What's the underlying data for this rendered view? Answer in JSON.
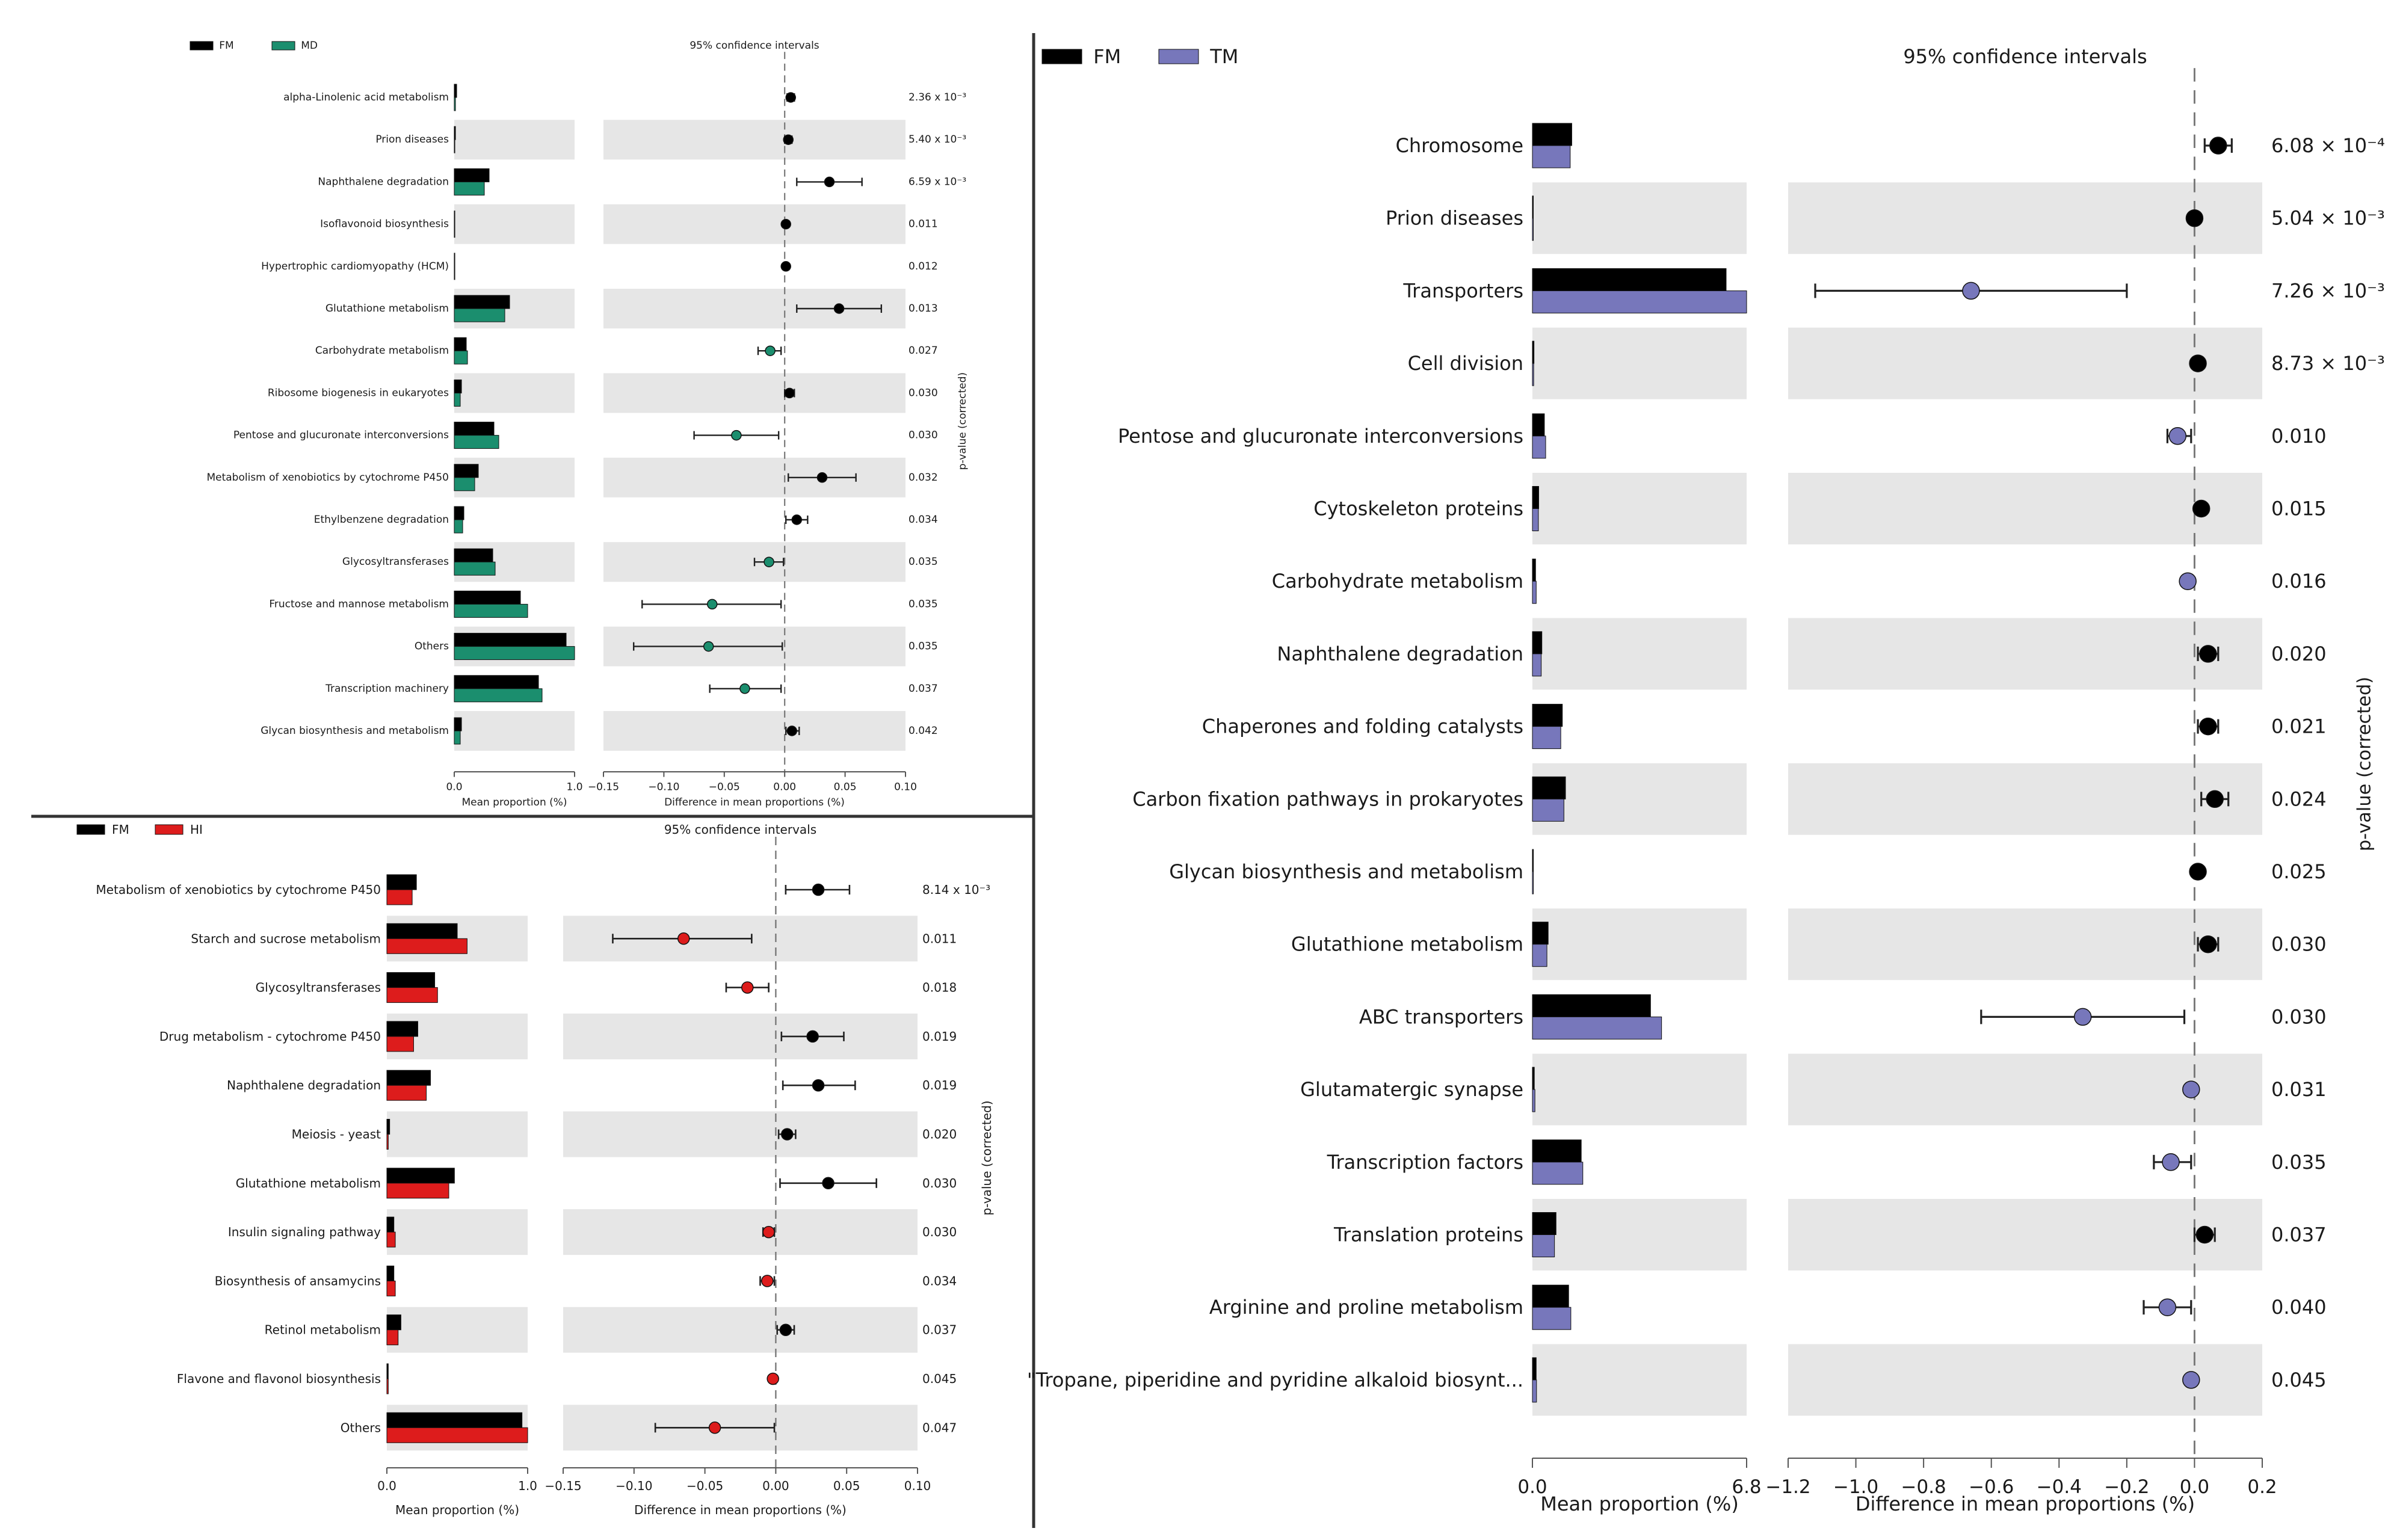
{
  "colors": {
    "FM": "#000000",
    "MD": "#1b8e6e",
    "HI": "#dd1c1c",
    "TM": "#7777bb",
    "band": "#e6e6e6",
    "axis": "#555555",
    "dashed": "#777777"
  },
  "chart_data": [
    {
      "id": "A",
      "type": "bar",
      "title": "95% confidence intervals",
      "legend": [
        {
          "name": "FM",
          "color": "#000000"
        },
        {
          "name": "MD",
          "color": "#1b8e6e"
        }
      ],
      "categories": [
        "alpha-Linolenic acid metabolism",
        "Prion diseases",
        "Naphthalene degradation",
        "Isoflavonoid biosynthesis",
        "Hypertrophic cardiomyopathy (HCM)",
        "Glutathione metabolism",
        "Carbohydrate metabolism",
        "Ribosome biogenesis in eukaryotes",
        "Pentose and glucuronate interconversions",
        "Metabolism of xenobiotics by cytochrome P450",
        "Ethylbenzene degradation",
        "Glycosyltransferases",
        "Fructose and mannose metabolism",
        "Others",
        "Transcription machinery",
        "Glycan biosynthesis and metabolism"
      ],
      "series": [
        {
          "name": "FM",
          "values": [
            0.02,
            0.01,
            0.29,
            0.0,
            0.0,
            0.46,
            0.1,
            0.06,
            0.33,
            0.2,
            0.08,
            0.32,
            0.55,
            0.93,
            0.7,
            0.06
          ]
        },
        {
          "name": "MD",
          "values": [
            0.01,
            0.0,
            0.25,
            0.0,
            0.0,
            0.42,
            0.11,
            0.05,
            0.37,
            0.17,
            0.07,
            0.34,
            0.61,
            1.0,
            0.73,
            0.05
          ]
        }
      ],
      "differences": [
        0.005,
        0.003,
        0.037,
        0.001,
        0.001,
        0.045,
        -0.012,
        0.004,
        -0.04,
        0.031,
        0.01,
        -0.013,
        -0.06,
        -0.063,
        -0.033,
        0.006
      ],
      "ci_low": [
        0.002,
        0.0,
        0.01,
        0.0,
        0.0,
        0.01,
        -0.022,
        0.0,
        -0.075,
        0.003,
        0.001,
        -0.025,
        -0.118,
        -0.125,
        -0.062,
        0.001
      ],
      "ci_high": [
        0.008,
        0.006,
        0.064,
        0.002,
        0.002,
        0.08,
        -0.003,
        0.008,
        -0.005,
        0.059,
        0.019,
        -0.001,
        -0.003,
        -0.002,
        -0.003,
        0.012
      ],
      "diff_colors": [
        "FM",
        "FM",
        "FM",
        "FM",
        "FM",
        "FM",
        "MD",
        "FM",
        "MD",
        "FM",
        "FM",
        "MD",
        "MD",
        "MD",
        "MD",
        "FM"
      ],
      "pvalues": [
        "2.36 x 10⁻³",
        "5.40 x 10⁻³",
        "6.59 x 10⁻³",
        "0.011",
        "0.012",
        "0.013",
        "0.027",
        "0.030",
        "0.030",
        "0.032",
        "0.034",
        "0.035",
        "0.035",
        "0.035",
        "0.037",
        "0.042"
      ],
      "xlabel_mean": "Mean proportion (%)",
      "xlabel_diff": "Difference in mean proportions (%)",
      "ylabel_right": "p-value (corrected)",
      "mean_xlim": [
        0,
        1.0
      ],
      "mean_ticks": [
        "0.0",
        "1.0"
      ],
      "diff_xlim": [
        -0.15,
        0.1
      ],
      "diff_ticks": [
        -0.15,
        -0.1,
        -0.05,
        0.0,
        0.05,
        0.1
      ],
      "diff_tick_labels": [
        "−0.15",
        "−0.10",
        "−0.05",
        "0.00",
        "0.05",
        "0.10"
      ],
      "grid": false,
      "legend_placement": "top-left"
    },
    {
      "id": "B",
      "type": "bar",
      "title": "95% confidence intervals",
      "legend": [
        {
          "name": "FM",
          "color": "#000000"
        },
        {
          "name": "HI",
          "color": "#dd1c1c"
        }
      ],
      "categories": [
        "Metabolism of xenobiotics by cytochrome P450",
        "Starch and sucrose metabolism",
        "Glycosyltransferases",
        "Drug metabolism - cytochrome P450",
        "Naphthalene degradation",
        "Meiosis - yeast",
        "Glutathione metabolism",
        "Insulin signaling pathway",
        "Biosynthesis of ansamycins",
        "Retinol metabolism",
        "Flavone and flavonol biosynthesis",
        "Others"
      ],
      "series": [
        {
          "name": "FM",
          "values": [
            0.21,
            0.5,
            0.34,
            0.22,
            0.31,
            0.02,
            0.48,
            0.05,
            0.05,
            0.1,
            0.01,
            0.96
          ]
        },
        {
          "name": "HI",
          "values": [
            0.18,
            0.57,
            0.36,
            0.19,
            0.28,
            0.01,
            0.44,
            0.06,
            0.06,
            0.08,
            0.01,
            1.0
          ]
        }
      ],
      "differences": [
        0.03,
        -0.065,
        -0.02,
        0.026,
        0.03,
        0.008,
        0.037,
        -0.005,
        -0.006,
        0.007,
        -0.002,
        -0.043
      ],
      "ci_low": [
        0.007,
        -0.115,
        -0.035,
        0.004,
        0.005,
        0.002,
        0.003,
        -0.009,
        -0.011,
        0.001,
        -0.004,
        -0.085
      ],
      "ci_high": [
        0.052,
        -0.017,
        -0.005,
        0.048,
        0.056,
        0.014,
        0.071,
        -0.001,
        -0.001,
        0.013,
        0.0,
        -0.001
      ],
      "diff_colors": [
        "FM",
        "HI",
        "HI",
        "FM",
        "FM",
        "FM",
        "FM",
        "HI",
        "HI",
        "FM",
        "HI",
        "HI"
      ],
      "pvalues": [
        "8.14 x 10⁻³",
        "0.011",
        "0.018",
        "0.019",
        "0.019",
        "0.020",
        "0.030",
        "0.030",
        "0.034",
        "0.037",
        "0.045",
        "0.047"
      ],
      "xlabel_mean": "Mean proportion (%)",
      "xlabel_diff": "Difference in mean proportions (%)",
      "ylabel_right": "p-value (corrected)",
      "mean_xlim": [
        0,
        1.0
      ],
      "mean_ticks": [
        "0.0",
        "1.0"
      ],
      "diff_xlim": [
        -0.15,
        0.1
      ],
      "diff_ticks": [
        -0.15,
        -0.1,
        -0.05,
        0.0,
        0.05,
        0.1
      ],
      "diff_tick_labels": [
        "−0.15",
        "−0.10",
        "−0.05",
        "0.00",
        "0.05",
        "0.10"
      ],
      "grid": false,
      "legend_placement": "top-left"
    },
    {
      "id": "C",
      "type": "bar",
      "title": "95% confidence intervals",
      "legend": [
        {
          "name": "FM",
          "color": "#000000"
        },
        {
          "name": "TM",
          "color": "#7777bb"
        }
      ],
      "categories": [
        "Chromosome",
        "Prion diseases",
        "Transporters",
        "Cell division",
        "Pentose and glucuronate interconversions",
        "Cytoskeleton proteins",
        "Carbohydrate metabolism",
        "Naphthalene degradation",
        "Chaperones and folding catalysts",
        "Carbon fixation pathways in prokaryotes",
        "Glycan biosynthesis and metabolism",
        "Glutathione metabolism",
        "ABC transporters",
        "Glutamatergic synapse",
        "Transcription factors",
        "Translation proteins",
        "Arginine and proline metabolism",
        "\"Tropane, piperidine and pyridine alkaloid biosynt..."
      ],
      "series": [
        {
          "name": "FM",
          "values": [
            1.25,
            0.02,
            6.15,
            0.05,
            0.38,
            0.2,
            0.1,
            0.3,
            0.95,
            1.05,
            0.03,
            0.5,
            3.75,
            0.06,
            1.55,
            0.75,
            1.15,
            0.12
          ]
        },
        {
          "name": "TM",
          "values": [
            1.2,
            0.01,
            6.8,
            0.04,
            0.42,
            0.19,
            0.12,
            0.28,
            0.9,
            1.0,
            0.02,
            0.46,
            4.1,
            0.08,
            1.6,
            0.7,
            1.22,
            0.13
          ]
        }
      ],
      "differences": [
        0.07,
        0.0,
        -0.66,
        0.01,
        -0.05,
        0.02,
        -0.02,
        0.04,
        0.04,
        0.06,
        0.01,
        0.04,
        -0.33,
        -0.01,
        -0.07,
        0.03,
        -0.08,
        -0.01
      ],
      "ci_low": [
        0.03,
        -0.01,
        -1.12,
        0.0,
        -0.08,
        0.01,
        -0.03,
        0.01,
        0.01,
        0.02,
        0.0,
        0.01,
        -0.63,
        -0.02,
        -0.12,
        0.0,
        -0.15,
        -0.02
      ],
      "ci_high": [
        0.11,
        0.01,
        -0.2,
        0.02,
        -0.01,
        0.03,
        -0.01,
        0.07,
        0.07,
        0.1,
        0.02,
        0.07,
        -0.03,
        0.0,
        -0.01,
        0.06,
        -0.01,
        0.0
      ],
      "diff_colors": [
        "FM",
        "FM",
        "TM",
        "FM",
        "TM",
        "FM",
        "TM",
        "FM",
        "FM",
        "FM",
        "FM",
        "FM",
        "TM",
        "TM",
        "TM",
        "FM",
        "TM",
        "TM"
      ],
      "pvalues": [
        "6.08 × 10⁻⁴",
        "5.04 × 10⁻³",
        "7.26 × 10⁻³",
        "8.73 × 10⁻³",
        "0.010",
        "0.015",
        "0.016",
        "0.020",
        "0.021",
        "0.024",
        "0.025",
        "0.030",
        "0.030",
        "0.031",
        "0.035",
        "0.037",
        "0.040",
        "0.045"
      ],
      "xlabel_mean": "Mean proportion (%)",
      "xlabel_diff": "Difference in mean proportions (%)",
      "ylabel_right": "p-value (corrected)",
      "mean_xlim": [
        0,
        6.8
      ],
      "mean_ticks": [
        "0.0",
        "6.8"
      ],
      "diff_xlim": [
        -1.2,
        0.2
      ],
      "diff_ticks": [
        -1.2,
        -1.0,
        -0.8,
        -0.6,
        -0.4,
        -0.2,
        0.0,
        0.2
      ],
      "diff_tick_labels": [
        "−1.2",
        "−1.0",
        "−0.8",
        "−0.6",
        "−0.4",
        "−0.2",
        "0.0",
        "0.2"
      ],
      "grid": false,
      "legend_placement": "top-left"
    }
  ]
}
